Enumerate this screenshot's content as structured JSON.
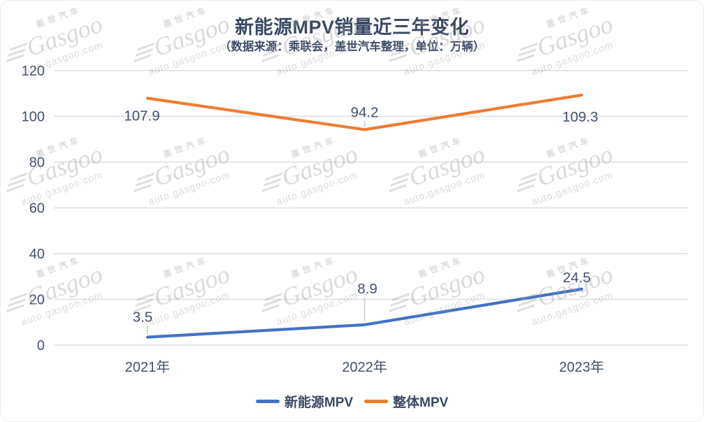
{
  "card": {
    "title": "新能源MPV销量近三年变化",
    "subtitle": "（数据来源：乘联会，盖世汽车整理，单位：万辆）"
  },
  "chart_data": {
    "type": "line",
    "title": "新能源MPV销量近三年变化",
    "subtitle": "（数据来源：乘联会，盖世汽车整理，单位：万辆）",
    "unit": "万辆",
    "categories": [
      "2021年",
      "2022年",
      "2023年"
    ],
    "series": [
      {
        "name": "新能源MPV",
        "values": [
          3.5,
          8.9,
          24.5
        ],
        "color": "#4472C4",
        "label_offsets": [
          [
            -7,
            -29
          ],
          [
            4,
            -52
          ],
          [
            -7,
            -17
          ]
        ],
        "leaders": [
          true,
          true,
          false
        ]
      },
      {
        "name": "整体MPV",
        "values": [
          107.9,
          94.2,
          109.3
        ],
        "color": "#ED7D31",
        "label_offsets": [
          [
            -8,
            25
          ],
          [
            0,
            -25
          ],
          [
            -2,
            31
          ]
        ],
        "leaders": [
          false,
          true,
          false
        ]
      }
    ],
    "ylim": [
      0,
      120
    ],
    "ytick_step": 20,
    "yticks": [
      0,
      20,
      40,
      60,
      80,
      100,
      120
    ],
    "grid": true,
    "legend_position": "bottom"
  },
  "watermark": {
    "brand_cn": "盖世汽车",
    "brand_en": "Gasgoo",
    "site": "auto.gasgoo.com"
  },
  "colors": {
    "text": "#42516b",
    "grid": "#e3e6ec",
    "leader": "#c5ccd8",
    "background": "#ffffff"
  }
}
